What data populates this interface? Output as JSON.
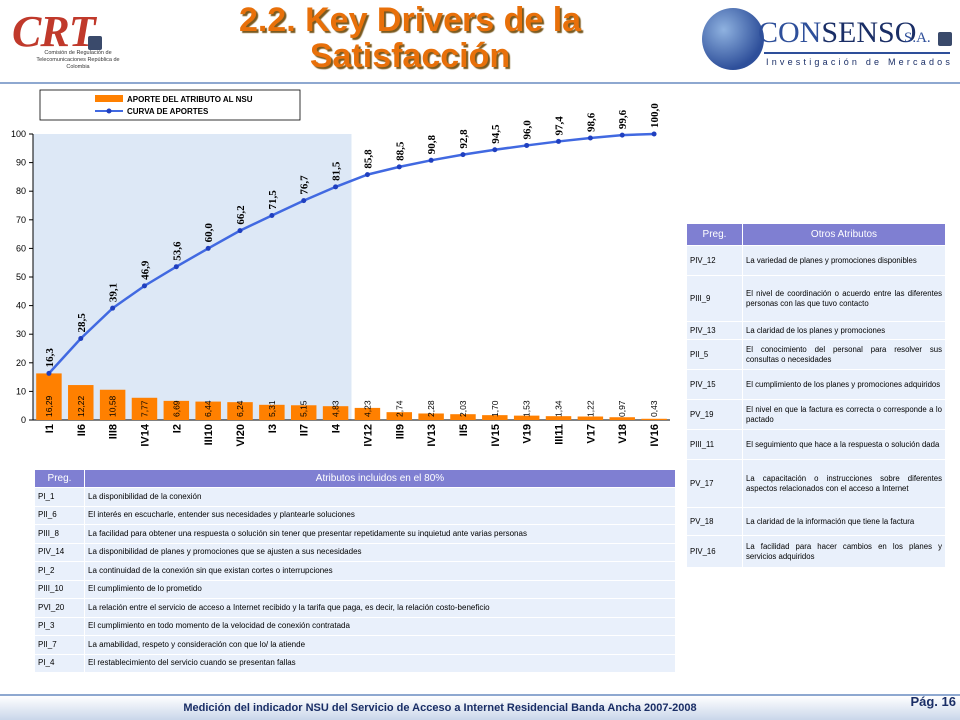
{
  "header": {
    "title_line1": "2.2. Key Drivers de la",
    "title_line2": "Satisfacción",
    "crt_logo": {
      "word": "CRT",
      "sub": "Comisión de Regulación de Telecomunicaciones República de Colombia"
    },
    "consenso_logo": {
      "word_a": "CON",
      "word_b": "SENSO",
      "suffix": "S.A.",
      "tagline": "Investigación de Mercados"
    }
  },
  "colors": {
    "bar": "#ff8000",
    "line": "#4169e1",
    "marker": "#1f3fbf",
    "shade": "#dde8f6",
    "title": "#e8700a",
    "table_header": "#7f7fd2",
    "table_cell": "#e9f0fb"
  },
  "chart_data": {
    "type": "bar",
    "categories": [
      "I1",
      "II6",
      "III8",
      "IV14",
      "I2",
      "III10",
      "VI20",
      "I3",
      "II7",
      "I4",
      "IV12",
      "III9",
      "IV13",
      "II5",
      "IV15",
      "V19",
      "III11",
      "V17",
      "V18",
      "IV16"
    ],
    "series": [
      {
        "name": "APORTE DEL ATRIBUTO AL NSU",
        "type": "bar",
        "values": [
          16.29,
          12.22,
          10.58,
          7.77,
          6.69,
          6.44,
          6.24,
          5.31,
          5.15,
          4.83,
          4.23,
          2.74,
          2.28,
          2.03,
          1.7,
          1.53,
          1.34,
          1.22,
          0.97,
          0.43
        ],
        "labels": [
          "16,29",
          "12,22",
          "10,58",
          "7,77",
          "6,69",
          "6,44",
          "6,24",
          "5,31",
          "5,15",
          "4,83",
          "4,23",
          "2,74",
          "2,28",
          "2,03",
          "1,70",
          "1,53",
          "1,34",
          "1,22",
          "0,97",
          "0,43"
        ]
      },
      {
        "name": "CURVA DE APORTES",
        "type": "line",
        "values": [
          16.3,
          28.5,
          39.1,
          46.9,
          53.6,
          60.0,
          66.2,
          71.5,
          76.7,
          81.5,
          85.8,
          88.5,
          90.8,
          92.8,
          94.5,
          96.0,
          97.4,
          98.6,
          99.6,
          100.0
        ],
        "labels": [
          "16,3",
          "28,5",
          "39,1",
          "46,9",
          "53,6",
          "60,0",
          "66,2",
          "71,5",
          "76,7",
          "81,5",
          "85,8",
          "88,5",
          "90,8",
          "92,8",
          "94,5",
          "96,0",
          "97,4",
          "98,6",
          "99,6",
          "100,0"
        ]
      }
    ],
    "ylim": [
      0,
      100
    ],
    "yticks": [
      0,
      10,
      20,
      30,
      40,
      50,
      60,
      70,
      80,
      90,
      100
    ],
    "shaded_categories": 10,
    "legend_position": "top-left",
    "grid": false
  },
  "table_included": {
    "headers": [
      "Preg.",
      "Atributos incluidos en el 80%"
    ],
    "rows": [
      [
        "PI_1",
        "La disponibilidad de la conexión"
      ],
      [
        "PII_6",
        "El interés en escucharle, entender sus necesidades y plantearle soluciones"
      ],
      [
        "PIII_8",
        "La facilidad para obtener una respuesta o solución sin tener que presentar repetidamente su inquietud ante varias personas"
      ],
      [
        "PIV_14",
        "La disponibilidad de planes y promociones que se ajusten a sus necesidades"
      ],
      [
        "PI_2",
        "La continuidad de la conexión sin que existan cortes o interrupciones"
      ],
      [
        "PIII_10",
        "El cumplimiento de lo prometido"
      ],
      [
        "PVI_20",
        "La relación entre el servicio de acceso a Internet recibido y la tarifa que paga, es decir, la relación costo-beneficio"
      ],
      [
        "PI_3",
        "El cumplimiento en todo momento de la velocidad de conexión contratada"
      ],
      [
        "PII_7",
        "La amabilidad, respeto y consideración con que lo/ la atiende"
      ],
      [
        "PI_4",
        "El restablecimiento del servicio cuando se presentan fallas"
      ]
    ]
  },
  "table_other": {
    "headers": [
      "Preg.",
      "Otros Atributos"
    ],
    "rows": [
      [
        "PIV_12",
        "La variedad de planes y promociones disponibles"
      ],
      [
        "PIII_9",
        "El nivel de coordinación o acuerdo entre las diferentes personas con las que tuvo contacto"
      ],
      [
        "PIV_13",
        "La claridad de los planes y promociones"
      ],
      [
        "PII_5",
        "El conocimiento del personal para resolver sus consultas o necesidades"
      ],
      [
        "PIV_15",
        "El cumplimiento de los planes y promociones adquiridos"
      ],
      [
        "PV_19",
        "El nivel en que la factura es correcta o corresponde a lo pactado"
      ],
      [
        "PIII_11",
        "El seguimiento que hace a la respuesta o solución dada"
      ],
      [
        "PV_17",
        "La capacitación o instrucciones sobre diferentes aspectos relacionados con el acceso a Internet"
      ],
      [
        "PV_18",
        "La claridad de la información que tiene la factura"
      ],
      [
        "PIV_16",
        "La facilidad para hacer cambios en los planes y servicios adquiridos"
      ]
    ]
  },
  "footer": {
    "text": "Medición del indicador NSU del Servicio de Acceso a Internet Residencial Banda Ancha 2007-2008",
    "page": "Pág. 16"
  }
}
